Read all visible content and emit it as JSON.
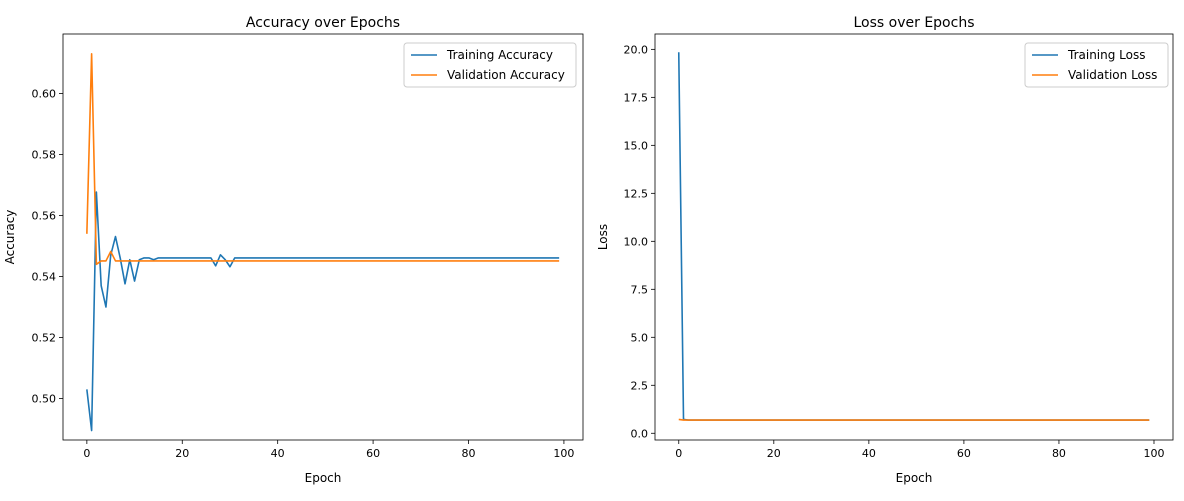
{
  "chart_data": [
    {
      "type": "line",
      "title": "Accuracy over Epochs",
      "xlabel": "Epoch",
      "ylabel": "Accuracy",
      "xlim": [
        -5,
        104
      ],
      "ylim": [
        0.4864,
        0.6195
      ],
      "xticks": [
        0,
        20,
        40,
        60,
        80,
        100
      ],
      "yticks": [
        0.5,
        0.52,
        0.54,
        0.56,
        0.58,
        0.6
      ],
      "ytick_labels": [
        "0.50",
        "0.52",
        "0.54",
        "0.56",
        "0.58",
        "0.60"
      ],
      "grid": false,
      "legend_position": "top-right",
      "series": [
        {
          "name": "Training Accuracy",
          "color": "#1f77b4",
          "points": [
            [
              0,
              0.503
            ],
            [
              1,
              0.4895
            ],
            [
              2,
              0.5677
            ],
            [
              3,
              0.537
            ],
            [
              4,
              0.53
            ],
            [
              5,
              0.547
            ],
            [
              6,
              0.5531
            ],
            [
              7,
              0.546
            ],
            [
              8,
              0.5376
            ],
            [
              9,
              0.5455
            ],
            [
              10,
              0.5385
            ],
            [
              11,
              0.5455
            ],
            [
              12,
              0.5461
            ],
            [
              13,
              0.5461
            ],
            [
              14,
              0.5455
            ],
            [
              15,
              0.5461
            ],
            [
              26,
              0.5461
            ],
            [
              27,
              0.5435
            ],
            [
              28,
              0.5471
            ],
            [
              29,
              0.5455
            ],
            [
              30,
              0.5432
            ],
            [
              31,
              0.5461
            ],
            [
              99,
              0.5461
            ]
          ]
        },
        {
          "name": "Validation Accuracy",
          "color": "#ff7f0e",
          "points": [
            [
              0,
              0.554
            ],
            [
              1,
              0.613
            ],
            [
              2,
              0.544
            ],
            [
              3,
              0.5451
            ],
            [
              4,
              0.5451
            ],
            [
              5,
              0.5482
            ],
            [
              6,
              0.5451
            ],
            [
              99,
              0.5451
            ]
          ]
        }
      ]
    },
    {
      "type": "line",
      "title": "Loss over Epochs",
      "xlabel": "Epoch",
      "ylabel": "Loss",
      "xlim": [
        -5,
        104
      ],
      "ylim": [
        -0.35,
        20.8
      ],
      "xticks": [
        0,
        20,
        40,
        60,
        80,
        100
      ],
      "yticks": [
        0,
        2.5,
        5,
        7.5,
        10,
        12.5,
        15,
        17.5,
        20
      ],
      "ytick_labels": [
        "0.0",
        "2.5",
        "5.0",
        "7.5",
        "10.0",
        "12.5",
        "15.0",
        "17.5",
        "20.0"
      ],
      "grid": false,
      "legend_position": "top-right",
      "series": [
        {
          "name": "Training Loss",
          "color": "#1f77b4",
          "points": [
            [
              0,
              19.85
            ],
            [
              1,
              0.72
            ],
            [
              2,
              0.69
            ],
            [
              99,
              0.69
            ]
          ]
        },
        {
          "name": "Validation Loss",
          "color": "#ff7f0e",
          "points": [
            [
              0,
              0.72
            ],
            [
              1,
              0.69
            ],
            [
              99,
              0.69
            ]
          ]
        }
      ]
    }
  ]
}
